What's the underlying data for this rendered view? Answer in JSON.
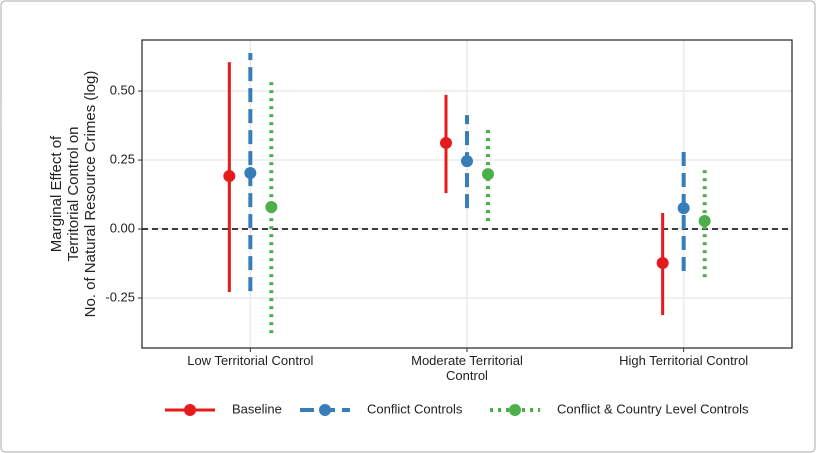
{
  "chart_data": {
    "type": "pointrange",
    "ylabel": [
      "Marginal Effect of",
      "Territorial Control on",
      "No. of Natural Resource Crimes (log)"
    ],
    "categories": [
      "Low Territorial Control",
      "Moderate Territorial Control",
      "High Territorial Control"
    ],
    "ylim": [
      -0.431,
      0.685
    ],
    "yticks": [
      {
        "value": -0.25,
        "label": "-0.25"
      },
      {
        "value": 0,
        "label": "0.00"
      },
      {
        "value": 0.25,
        "label": "0.25"
      },
      {
        "value": 0.5,
        "label": "0.50"
      }
    ],
    "reference_line": 0,
    "grid": true,
    "legend": "bottom",
    "series": [
      {
        "name": "Baseline",
        "color": "#e41a1c",
        "dash": "solid",
        "values": [
          0.192,
          0.312,
          -0.123
        ],
        "lower": [
          -0.228,
          0.13,
          -0.312
        ],
        "upper": [
          0.605,
          0.486,
          0.058
        ]
      },
      {
        "name": "Conflict Controls",
        "color": "#377eb8",
        "dash": "dashed",
        "values": [
          0.203,
          0.246,
          0.076
        ],
        "lower": [
          -0.225,
          0.076,
          -0.152
        ],
        "upper": [
          0.638,
          0.413,
          0.293
        ]
      },
      {
        "name": "Conflict & Country Level Controls",
        "color": "#4daf4a",
        "dash": "dotted",
        "values": [
          0.08,
          0.199,
          0.029
        ],
        "lower": [
          -0.377,
          0.029,
          -0.174
        ],
        "upper": [
          0.547,
          0.373,
          0.225
        ]
      }
    ]
  }
}
